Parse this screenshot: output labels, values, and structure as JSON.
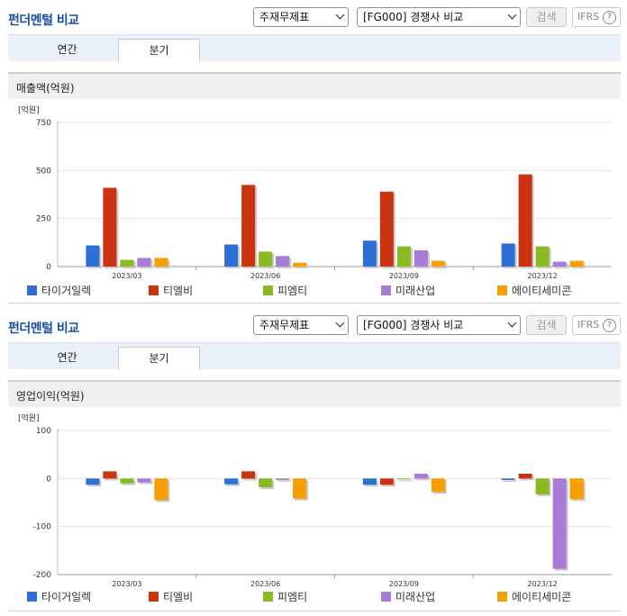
{
  "panels": [
    {
      "title": "펀더멘털 비교",
      "statement_select": "주재무제표",
      "compare_select": "[FG000] 경쟁사 비교",
      "search_label": "검색",
      "ifrs_label": "IFRS",
      "help_glyph": "?",
      "tabs": [
        {
          "label": "연간"
        },
        {
          "label": "분기"
        }
      ],
      "active_tab": 1,
      "section_title": "매출액(억원)"
    },
    {
      "title": "펀더멘털 비교",
      "statement_select": "주재무제표",
      "compare_select": "[FG000] 경쟁사 비교",
      "search_label": "검색",
      "ifrs_label": "IFRS",
      "help_glyph": "?",
      "tabs": [
        {
          "label": "연간"
        },
        {
          "label": "분기"
        }
      ],
      "active_tab": 1,
      "section_title": "영업이익(억원)"
    }
  ],
  "colors": {
    "타이거일렉": "#2e6fd6",
    "티엘비": "#cc3311",
    "피엠티": "#88bb22",
    "미래산업": "#a77bd6",
    "에이티세미콘": "#f5a000"
  },
  "chart_data": [
    {
      "type": "bar",
      "title": "매출액(억원)",
      "unit_label": "[억원]",
      "categories": [
        "2023/03",
        "2023/06",
        "2023/09",
        "2023/12"
      ],
      "ylim": [
        0,
        750
      ],
      "yticks": [
        0,
        250,
        500,
        750
      ],
      "ytick_labels": [
        "0",
        "250",
        "500",
        "750"
      ],
      "grid": true,
      "legend_position": "bottom",
      "series": [
        {
          "name": "타이거일렉",
          "values": [
            110,
            115,
            135,
            120
          ]
        },
        {
          "name": "티엘비",
          "values": [
            410,
            425,
            390,
            480
          ]
        },
        {
          "name": "피엠티",
          "values": [
            35,
            78,
            105,
            105
          ]
        },
        {
          "name": "미래산업",
          "values": [
            45,
            55,
            85,
            25
          ]
        },
        {
          "name": "에이티세미콘",
          "values": [
            45,
            20,
            30,
            30
          ]
        }
      ]
    },
    {
      "type": "bar",
      "title": "영업이익(억원)",
      "unit_label": "[억원]",
      "categories": [
        "2023/03",
        "2023/06",
        "2023/09",
        "2023/12"
      ],
      "ylim": [
        -200,
        100
      ],
      "yticks": [
        -200,
        -100,
        0,
        100
      ],
      "ytick_labels": [
        "-200",
        "-100",
        "0",
        "100"
      ],
      "grid": true,
      "legend_position": "bottom",
      "series": [
        {
          "name": "타이거일렉",
          "values": [
            -13,
            -12,
            -13,
            -3
          ]
        },
        {
          "name": "티엘비",
          "values": [
            15,
            15,
            -13,
            10
          ]
        },
        {
          "name": "피엠티",
          "values": [
            -10,
            -18,
            -2,
            -33
          ]
        },
        {
          "name": "미래산업",
          "values": [
            -8,
            -3,
            10,
            -188
          ]
        },
        {
          "name": "에이티세미콘",
          "values": [
            -45,
            -42,
            -28,
            -43
          ]
        }
      ]
    }
  ]
}
